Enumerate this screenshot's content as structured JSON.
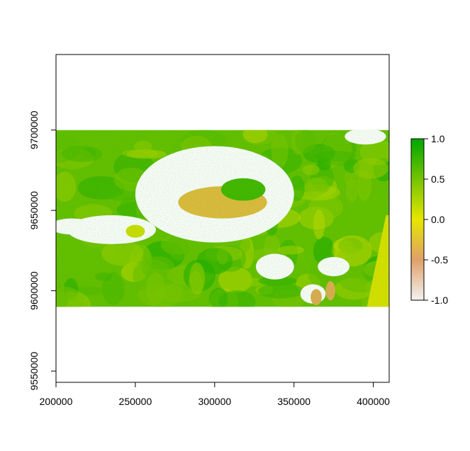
{
  "chart_data": {
    "type": "heatmap",
    "title": "",
    "xlabel": "",
    "ylabel": "",
    "xlim": [
      200000,
      410000
    ],
    "ylim": [
      9543000,
      9747000
    ],
    "raster_extent": {
      "x": [
        200000,
        410000
      ],
      "y": [
        9590000,
        9700000
      ]
    },
    "x_ticks": [
      200000,
      250000,
      300000,
      350000,
      400000
    ],
    "x_tick_labels": [
      "200000",
      "250000",
      "300000",
      "350000",
      "400000"
    ],
    "y_ticks": [
      9550000,
      9600000,
      9650000,
      9700000
    ],
    "y_tick_labels": [
      "9550000",
      "9600000",
      "9650000",
      "9700000"
    ],
    "colorbar": {
      "min": -1.0,
      "max": 1.0,
      "ticks": [
        -1.0,
        -0.5,
        0.0,
        0.5,
        1.0
      ],
      "tick_labels": [
        "-1.0",
        "-0.5",
        "0.0",
        "0.5",
        "1.0"
      ],
      "colors": [
        "#f2f2f2",
        "#e0a06a",
        "#e6e600",
        "#74c400",
        "#00a600"
      ]
    },
    "features": [
      {
        "kind": "nodata",
        "shape": "ellipse",
        "cx": 300000,
        "cy": 9660000,
        "rx": 50000,
        "ry": 30000
      },
      {
        "kind": "value",
        "value": -0.3,
        "shape": "ellipse",
        "cx": 305000,
        "cy": 9655000,
        "rx": 28000,
        "ry": 10000
      },
      {
        "kind": "value",
        "value": 0.7,
        "shape": "ellipse",
        "cx": 318000,
        "cy": 9663000,
        "rx": 14000,
        "ry": 7000
      },
      {
        "kind": "nodata",
        "shape": "ellipse",
        "cx": 235000,
        "cy": 9638000,
        "rx": 28000,
        "ry": 9000
      },
      {
        "kind": "value",
        "value": 0.1,
        "shape": "ellipse",
        "cx": 250000,
        "cy": 9637000,
        "rx": 6000,
        "ry": 4000
      },
      {
        "kind": "nodata",
        "shape": "ellipse",
        "cx": 210000,
        "cy": 9640000,
        "rx": 14000,
        "ry": 5000
      },
      {
        "kind": "nodata",
        "shape": "ellipse",
        "cx": 338000,
        "cy": 9615000,
        "rx": 12000,
        "ry": 8000
      },
      {
        "kind": "nodata",
        "shape": "ellipse",
        "cx": 375000,
        "cy": 9615000,
        "rx": 10000,
        "ry": 6000
      },
      {
        "kind": "nodata",
        "shape": "ellipse",
        "cx": 362000,
        "cy": 9598000,
        "rx": 8000,
        "ry": 6000
      },
      {
        "kind": "nodata",
        "shape": "ellipse",
        "cx": 395000,
        "cy": 9696000,
        "rx": 13000,
        "ry": 5000
      },
      {
        "kind": "value",
        "value": -0.4,
        "shape": "ellipse",
        "cx": 364000,
        "cy": 9596000,
        "rx": 3500,
        "ry": 5000
      },
      {
        "kind": "value",
        "value": -0.4,
        "shape": "ellipse",
        "cx": 373000,
        "cy": 9600000,
        "rx": 3000,
        "ry": 6000
      }
    ],
    "notes_band": {
      "value": 0.05,
      "polygon": [
        [
          408000,
          9647000
        ],
        [
          410000,
          9647000
        ],
        [
          410000,
          9590000
        ],
        [
          396000,
          9590000
        ]
      ]
    },
    "grid": false,
    "legend": "right"
  }
}
